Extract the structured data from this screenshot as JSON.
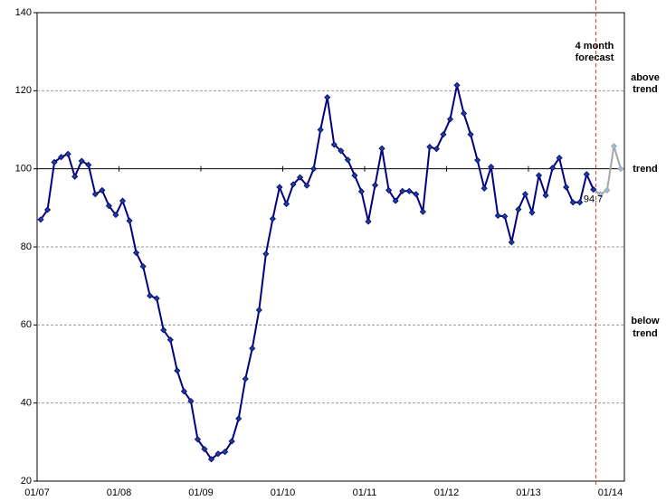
{
  "chart_data": {
    "type": "line",
    "categories": [
      "01/07",
      null,
      null,
      null,
      null,
      null,
      null,
      null,
      null,
      null,
      null,
      null,
      "01/08",
      null,
      null,
      null,
      null,
      null,
      null,
      null,
      null,
      null,
      null,
      null,
      "01/09",
      null,
      null,
      null,
      null,
      null,
      null,
      null,
      null,
      null,
      null,
      null,
      "01/10",
      null,
      null,
      null,
      null,
      null,
      null,
      null,
      null,
      null,
      null,
      null,
      "01/11",
      null,
      null,
      null,
      null,
      null,
      null,
      null,
      null,
      null,
      null,
      null,
      "01/12",
      null,
      null,
      null,
      null,
      null,
      null,
      null,
      null,
      null,
      null,
      null,
      "01/13",
      null,
      null,
      null,
      null,
      null,
      null,
      null,
      null,
      null,
      null,
      null,
      "01/14",
      null
    ],
    "series": [
      {
        "color": "#000080",
        "marker_color": "#1f3f8f",
        "values": [
          87,
          89.5,
          101.7,
          103,
          103.8,
          98,
          102,
          101,
          93.5,
          94.5,
          90.5,
          88.2,
          91.8,
          86.7,
          78.5,
          75,
          67.5,
          66.8,
          58.7,
          56.2,
          48.3,
          43,
          40.5,
          30.7,
          28.2,
          25.6,
          27,
          27.5,
          30.2,
          36,
          46.2,
          54,
          63.8,
          78.2,
          87.2,
          95.3,
          91,
          96,
          97.8,
          95.7,
          100,
          110,
          118.3,
          106.2,
          104.6,
          102.3,
          98.3,
          94.2,
          86.5,
          95.8,
          105.2,
          94.5,
          91.8,
          94.3,
          94.3,
          93.5,
          89,
          105.6,
          105.1,
          108.8,
          112.7,
          121.4,
          114.2,
          108.8,
          102.2,
          95,
          100.5,
          88,
          87.8,
          81.2,
          89.6,
          93.5,
          88.8,
          98.3,
          93.2,
          100.2,
          102.8,
          95.3,
          91.4,
          91.4,
          98.6,
          94.7,
          null,
          null,
          null,
          null
        ],
        "labeled_index": 81
      },
      {
        "color": "#a6a6a6",
        "marker_color": "#9db8e0",
        "values": [
          null,
          null,
          null,
          null,
          null,
          null,
          null,
          null,
          null,
          null,
          null,
          null,
          null,
          null,
          null,
          null,
          null,
          null,
          null,
          null,
          null,
          null,
          null,
          null,
          null,
          null,
          null,
          null,
          null,
          null,
          null,
          null,
          null,
          null,
          null,
          null,
          null,
          null,
          null,
          null,
          null,
          null,
          null,
          null,
          null,
          null,
          null,
          null,
          null,
          null,
          null,
          null,
          null,
          null,
          null,
          null,
          null,
          null,
          null,
          null,
          null,
          null,
          null,
          null,
          null,
          null,
          null,
          null,
          null,
          null,
          null,
          null,
          null,
          null,
          null,
          null,
          null,
          null,
          null,
          null,
          null,
          94.7,
          93.5,
          94.5,
          105.8,
          100
        ]
      }
    ],
    "ylim": [
      20,
      140
    ],
    "yticks": [
      20,
      40,
      60,
      80,
      100,
      120,
      140
    ],
    "grid": true,
    "reference_value": 100,
    "forecast_annotation": [
      "4 month",
      "forecast"
    ],
    "side_labels": {
      "above": [
        "above",
        "trend"
      ],
      "trend": "trend",
      "below": [
        "below",
        "trend"
      ]
    }
  }
}
